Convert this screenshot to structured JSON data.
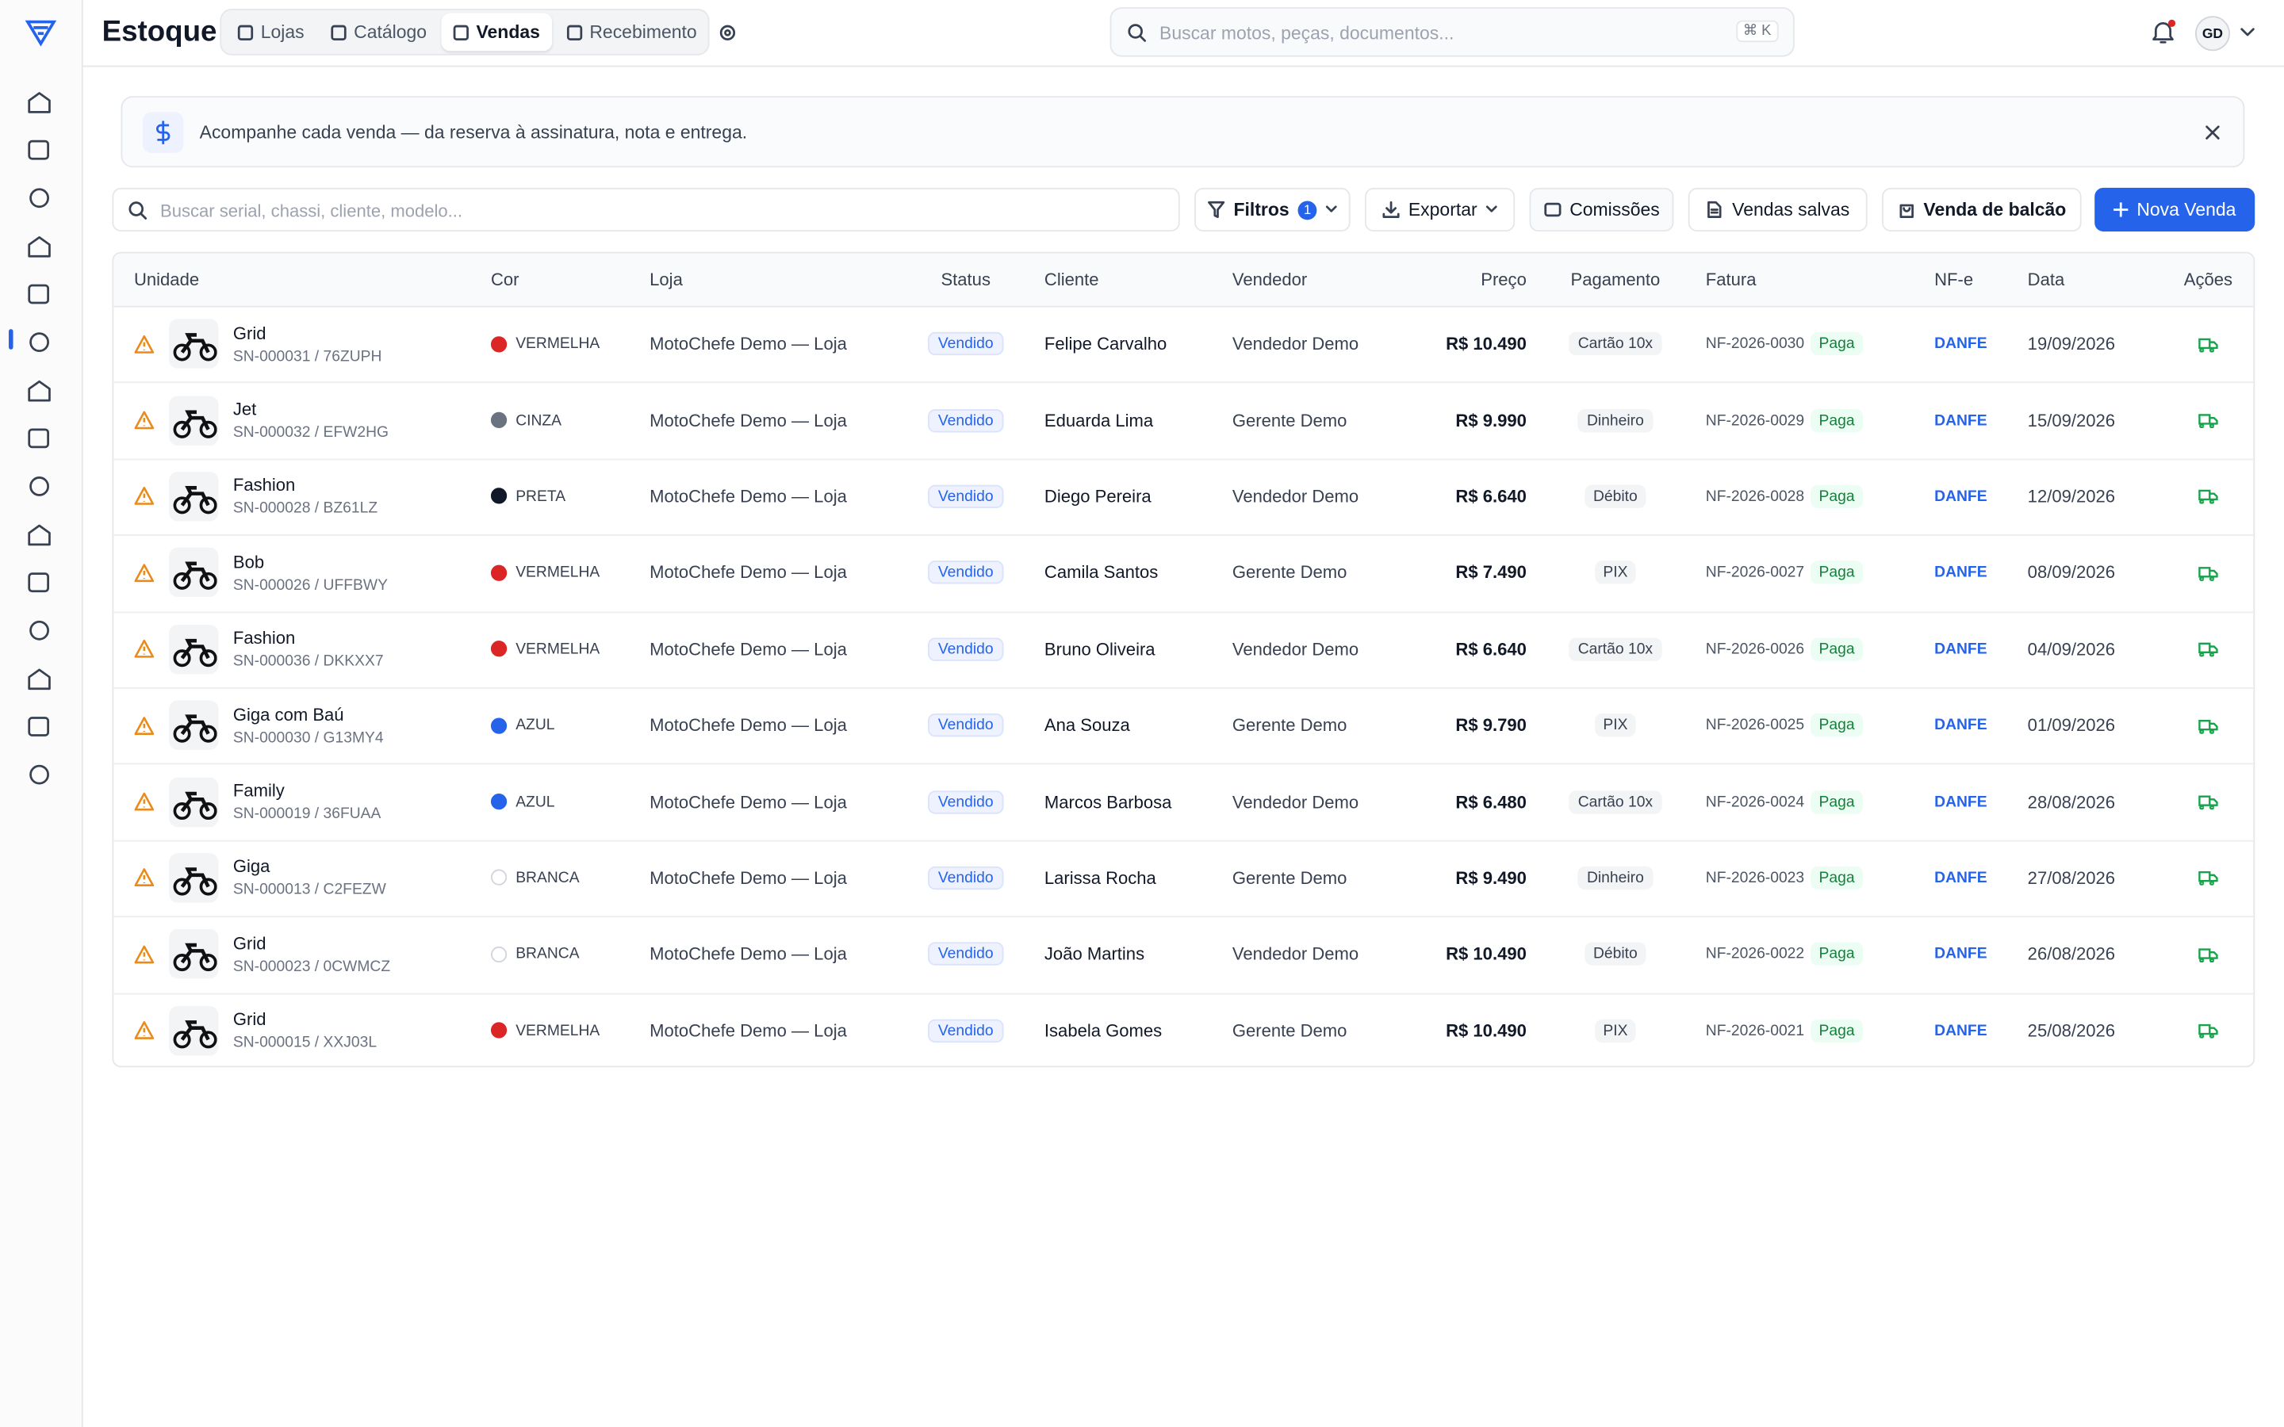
{
  "header": {
    "title": "Estoque",
    "tabs": [
      "Lojas",
      "Catálogo",
      "Vendas",
      "Recebimento"
    ],
    "search_placeholder": "Buscar motos, peças, documentos...",
    "shortcut": "⌘ K",
    "avatar": "GD"
  },
  "banner": {
    "text": "Acompanhe cada venda — da reserva à assinatura, nota e entrega."
  },
  "toolbar": {
    "search_placeholder": "Buscar serial, chassi, cliente, modelo...",
    "filters": "Filtros",
    "filters_count": 1,
    "export": "Exportar",
    "commissions": "Comissões",
    "saved": "Vendas salvas",
    "counter_sale": "Venda de balcão",
    "new_sale": "Nova Venda"
  },
  "table": {
    "headers": [
      "Unidade",
      "Cor",
      "Loja",
      "Status",
      "Cliente",
      "Vendedor",
      "Preço",
      "Pagamento",
      "Fatura",
      "NF-e",
      "Data",
      "Ações"
    ],
    "rows": [
      {
        "model": "Grid",
        "serial": "SN-000031 / 76ZUPH",
        "color": "VERMELHA",
        "dot": "#dc2626",
        "store": "MotoChefe Demo — Loja",
        "status": "Vendido",
        "client": "Felipe Carvalho",
        "seller": "Vendedor Demo",
        "price": "R$ 10.490",
        "payment": "Cartão 10x",
        "invoice": "NF-2026-0030",
        "invoice_status": "Paga",
        "nfe": "DANFE",
        "date": "19/09/2026"
      },
      {
        "model": "Jet",
        "serial": "SN-000032 / EFW2HG",
        "color": "CINZA",
        "dot": "#6b7280",
        "store": "MotoChefe Demo — Loja",
        "status": "Vendido",
        "client": "Eduarda Lima",
        "seller": "Gerente Demo",
        "price": "R$ 9.990",
        "payment": "Dinheiro",
        "invoice": "NF-2026-0029",
        "invoice_status": "Paga",
        "nfe": "DANFE",
        "date": "15/09/2026"
      },
      {
        "model": "Fashion",
        "serial": "SN-000028 / BZ61LZ",
        "color": "PRETA",
        "dot": "#111827",
        "store": "MotoChefe Demo — Loja",
        "status": "Vendido",
        "client": "Diego Pereira",
        "seller": "Vendedor Demo",
        "price": "R$ 6.640",
        "payment": "Débito",
        "invoice": "NF-2026-0028",
        "invoice_status": "Paga",
        "nfe": "DANFE",
        "date": "12/09/2026"
      },
      {
        "model": "Bob",
        "serial": "SN-000026 / UFFBWY",
        "color": "VERMELHA",
        "dot": "#dc2626",
        "store": "MotoChefe Demo — Loja",
        "status": "Vendido",
        "client": "Camila Santos",
        "seller": "Gerente Demo",
        "price": "R$ 7.490",
        "payment": "PIX",
        "invoice": "NF-2026-0027",
        "invoice_status": "Paga",
        "nfe": "DANFE",
        "date": "08/09/2026"
      },
      {
        "model": "Fashion",
        "serial": "SN-000036 / DKKXX7",
        "color": "VERMELHA",
        "dot": "#dc2626",
        "store": "MotoChefe Demo — Loja",
        "status": "Vendido",
        "client": "Bruno Oliveira",
        "seller": "Vendedor Demo",
        "price": "R$ 6.640",
        "payment": "Cartão 10x",
        "invoice": "NF-2026-0026",
        "invoice_status": "Paga",
        "nfe": "DANFE",
        "date": "04/09/2026"
      },
      {
        "model": "Giga com Baú",
        "serial": "SN-000030 / G13MY4",
        "color": "AZUL",
        "dot": "#2563eb",
        "store": "MotoChefe Demo — Loja",
        "status": "Vendido",
        "client": "Ana Souza",
        "seller": "Gerente Demo",
        "price": "R$ 9.790",
        "payment": "PIX",
        "invoice": "NF-2026-0025",
        "invoice_status": "Paga",
        "nfe": "DANFE",
        "date": "01/09/2026"
      },
      {
        "model": "Family",
        "serial": "SN-000019 / 36FUAA",
        "color": "AZUL",
        "dot": "#2563eb",
        "store": "MotoChefe Demo — Loja",
        "status": "Vendido",
        "client": "Marcos Barbosa",
        "seller": "Vendedor Demo",
        "price": "R$ 6.480",
        "payment": "Cartão 10x",
        "invoice": "NF-2026-0024",
        "invoice_status": "Paga",
        "nfe": "DANFE",
        "date": "28/08/2026"
      },
      {
        "model": "Giga",
        "serial": "SN-000013 / C2FEZW",
        "color": "BRANCA",
        "dot": "#ffffff",
        "store": "MotoChefe Demo — Loja",
        "status": "Vendido",
        "client": "Larissa Rocha",
        "seller": "Gerente Demo",
        "price": "R$ 9.490",
        "payment": "Dinheiro",
        "invoice": "NF-2026-0023",
        "invoice_status": "Paga",
        "nfe": "DANFE",
        "date": "27/08/2026"
      },
      {
        "model": "Grid",
        "serial": "SN-000023 / 0CWMCZ",
        "color": "BRANCA",
        "dot": "#ffffff",
        "store": "MotoChefe Demo — Loja",
        "status": "Vendido",
        "client": "João Martins",
        "seller": "Vendedor Demo",
        "price": "R$ 10.490",
        "payment": "Débito",
        "invoice": "NF-2026-0022",
        "invoice_status": "Paga",
        "nfe": "DANFE",
        "date": "26/08/2026"
      },
      {
        "model": "Grid",
        "serial": "SN-000015 / XXJ03L",
        "color": "VERMELHA",
        "dot": "#dc2626",
        "store": "MotoChefe Demo — Loja",
        "status": "Vendido",
        "client": "Isabela Gomes",
        "seller": "Gerente Demo",
        "price": "R$ 10.490",
        "payment": "PIX",
        "invoice": "NF-2026-0021",
        "invoice_status": "Paga",
        "nfe": "DANFE",
        "date": "25/08/2026"
      }
    ]
  }
}
